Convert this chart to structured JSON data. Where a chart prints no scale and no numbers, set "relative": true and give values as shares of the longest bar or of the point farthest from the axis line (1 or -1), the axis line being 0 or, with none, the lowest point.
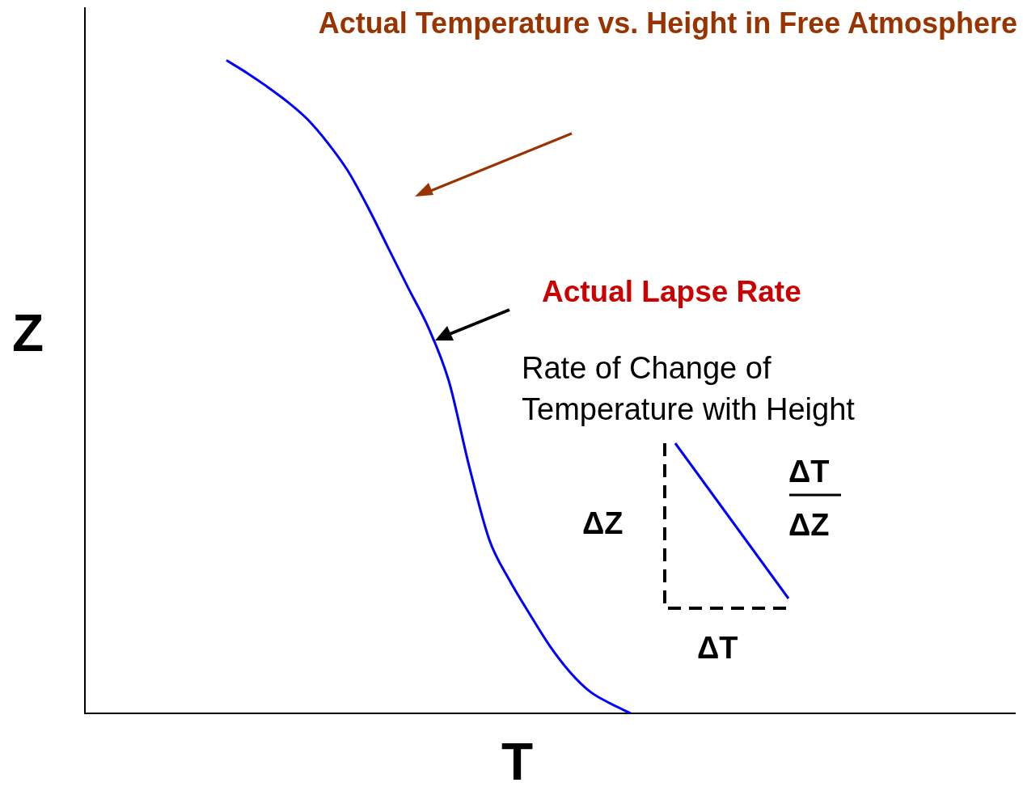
{
  "chart_data": {
    "type": "line",
    "title": "Actual Temperature vs. Height in Free Atmosphere",
    "xlabel": "T",
    "ylabel": "Z",
    "relative": true,
    "categories": [
      null,
      null,
      null,
      null,
      null,
      null,
      null,
      null,
      null,
      null,
      null,
      null,
      null,
      null,
      null,
      null,
      null,
      null,
      null,
      null,
      null,
      null,
      null,
      null,
      null,
      null,
      null,
      null,
      null,
      null,
      null,
      null,
      null,
      null,
      null,
      null,
      null,
      null,
      null,
      null,
      null,
      null,
      null,
      null,
      null,
      null,
      null
    ],
    "series": [
      {
        "color": "#0000ff",
        "values": [
          null,
          null,
          null,
          null,
          null,
          null,
          null,
          1,
          0.981,
          0.96,
          0.937,
          0.91,
          0.874,
          0.831,
          0.775,
          0.713,
          0.651,
          0.59,
          0.509,
          0.379,
          0.266,
          0.204,
          0.152,
          0.103,
          0.063,
          0.033,
          0.015,
          0,
          null,
          null,
          null,
          null,
          null,
          null,
          null,
          null,
          null,
          null,
          null,
          null,
          null,
          null,
          null,
          null,
          null,
          null,
          null
        ]
      }
    ],
    "annotations": [
      "Actual Lapse Rate",
      "Rate of Change of Temperature with Height",
      "ΔZ",
      "ΔT",
      "ΔZ",
      "ΔT"
    ],
    "legend": false,
    "grid": false,
    "marker": "none",
    "line_style": "solid"
  }
}
